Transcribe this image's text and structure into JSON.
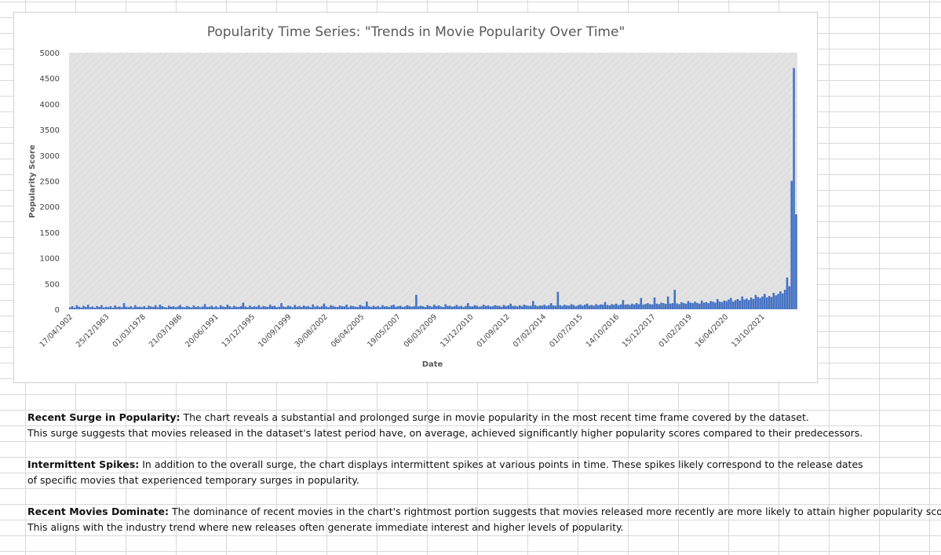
{
  "chart_data": {
    "type": "area",
    "title": "Popularity Time Series: \"Trends in Movie Popularity Over Time\"",
    "xlabel": "Date",
    "ylabel": "Popularity Score",
    "ylim": [
      0,
      5000
    ],
    "y_ticks": [
      0,
      500,
      1000,
      1500,
      2000,
      2500,
      3000,
      3500,
      4000,
      4500,
      5000
    ],
    "x_tick_labels": [
      "17/04/1902",
      "25/12/1963",
      "01/03/1978",
      "21/03/1986",
      "20/06/1991",
      "13/12/1995",
      "10/09/1999",
      "30/08/2002",
      "06/04/2005",
      "19/05/2007",
      "06/03/2009",
      "13/12/2010",
      "01/09/2012",
      "07/02/2014",
      "01/07/2015",
      "14/10/2016",
      "15/12/2017",
      "01/02/2019",
      "16/04/2020",
      "13/10/2021"
    ],
    "grid": false,
    "legend": "none",
    "series_color": "#4472c4",
    "series": [
      {
        "values": [
          40,
          60,
          30,
          80,
          50,
          35,
          70,
          45,
          90,
          40,
          55,
          30,
          65,
          45,
          80,
          35,
          50,
          40,
          60,
          30,
          75,
          45,
          55,
          40,
          120,
          50,
          40,
          60,
          35,
          80,
          45,
          50,
          40,
          60,
          30,
          70,
          55,
          45,
          80,
          40,
          90,
          60,
          45,
          35,
          70,
          50,
          60,
          40,
          55,
          85,
          45,
          40,
          65,
          50,
          35,
          75,
          45,
          60,
          40,
          55,
          100,
          45,
          50,
          70,
          40,
          60,
          35,
          80,
          55,
          45,
          90,
          60,
          40,
          70,
          50,
          45,
          60,
          130,
          55,
          40,
          75,
          45,
          60,
          50,
          80,
          40,
          65,
          55,
          45,
          90,
          60,
          70,
          40,
          50,
          120,
          55,
          45,
          70,
          60,
          40,
          85,
          50,
          65,
          45,
          75,
          55,
          60,
          40,
          95,
          50,
          70,
          45,
          60,
          110,
          55,
          40,
          80,
          65,
          50,
          45,
          75,
          60,
          55,
          90,
          40,
          70,
          60,
          50,
          45,
          85,
          65,
          55,
          150,
          60,
          45,
          70,
          50,
          65,
          40,
          80,
          55,
          60,
          45,
          75,
          90,
          50,
          60,
          70,
          45,
          55,
          80,
          65,
          50,
          60,
          280,
          55,
          70,
          60,
          45,
          80,
          65,
          50,
          90,
          60,
          75,
          55,
          45,
          100,
          65,
          70,
          50,
          60,
          85,
          55,
          70,
          45,
          65,
          120,
          60,
          55,
          80,
          70,
          50,
          60,
          90,
          65,
          75,
          55,
          60,
          80,
          70,
          65,
          50,
          85,
          60,
          75,
          110,
          65,
          70,
          55,
          80,
          60,
          90,
          75,
          65,
          70,
          160,
          80,
          60,
          75,
          70,
          90,
          65,
          80,
          120,
          75,
          70,
          340,
          80,
          65,
          90,
          75,
          70,
          100,
          85,
          60,
          80,
          95,
          70,
          90,
          110,
          75,
          85,
          70,
          100,
          80,
          95,
          90,
          140,
          85,
          75,
          100,
          90,
          110,
          80,
          95,
          180,
          90,
          100,
          85,
          110,
          95,
          120,
          100,
          220,
          90,
          105,
          120,
          100,
          95,
          230,
          110,
          100,
          130,
          120,
          105,
          250,
          110,
          120,
          380,
          115,
          100,
          140,
          120,
          110,
          160,
          130,
          120,
          150,
          125,
          110,
          170,
          130,
          140,
          120,
          160,
          150,
          130,
          200,
          150,
          140,
          170,
          160,
          190,
          220,
          150,
          180,
          200,
          170,
          250,
          190,
          210,
          180,
          230,
          200,
          280,
          240,
          220,
          250,
          300,
          230,
          260,
          240,
          320,
          270,
          300,
          350,
          310,
          380,
          620,
          450,
          2500,
          4700,
          1850
        ]
      }
    ]
  },
  "notes": [
    {
      "heading": "Recent Surge in Popularity:",
      "line1": " The chart reveals a substantial and prolonged surge in movie popularity in the most recent time frame covered by the dataset.",
      "line2": "This surge suggests that movies released in the dataset's latest period have, on average, achieved significantly higher popularity scores compared to their predecessors."
    },
    {
      "heading": "Intermittent Spikes:",
      "line1": " In addition to the overall surge, the chart displays intermittent spikes at various points in time. These spikes likely correspond to the release dates",
      "line2": "of specific movies that experienced temporary surges in popularity."
    },
    {
      "heading": "Recent Movies Dominate:",
      "line1": " The dominance of recent movies in the chart's rightmost portion suggests that movies released more recently are more likely to attain higher popularity scores.",
      "line2": "This aligns with the industry trend where new releases often generate immediate interest and higher levels of popularity."
    }
  ]
}
